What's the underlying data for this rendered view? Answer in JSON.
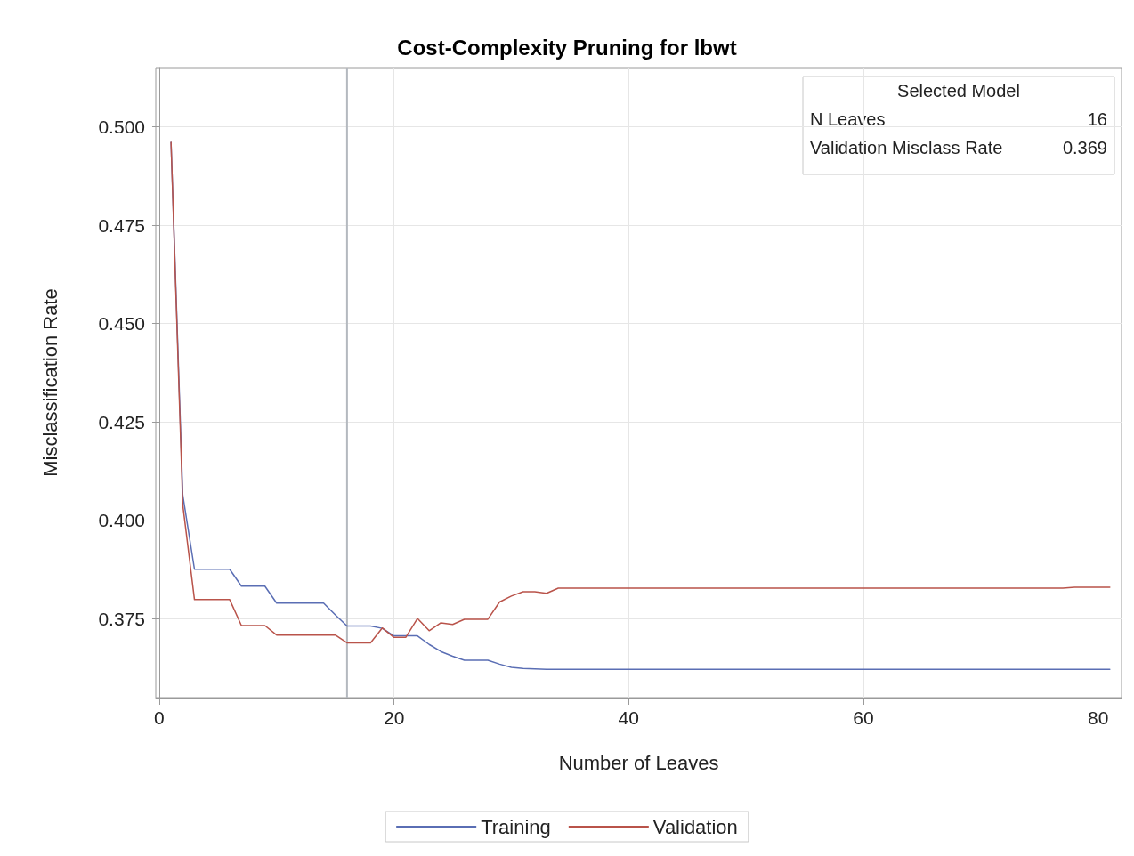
{
  "chart_data": {
    "type": "line",
    "title": "Cost-Complexity Pruning for lbwt",
    "xlabel": "Number of Leaves",
    "ylabel": "Misclassification Rate",
    "x": [
      1,
      2,
      3,
      4,
      5,
      6,
      7,
      8,
      9,
      10,
      11,
      12,
      13,
      14,
      15,
      16,
      17,
      18,
      19,
      20,
      21,
      22,
      23,
      24,
      25,
      26,
      27,
      28,
      29,
      30,
      31,
      32,
      33,
      34,
      35,
      36,
      37,
      38,
      39,
      40,
      41,
      42,
      43,
      44,
      45,
      46,
      47,
      48,
      49,
      50,
      51,
      52,
      53,
      54,
      55,
      56,
      57,
      58,
      59,
      60,
      61,
      62,
      63,
      64,
      65,
      66,
      67,
      68,
      69,
      70,
      71,
      72,
      73,
      74,
      75,
      76,
      77,
      78,
      79,
      80,
      81
    ],
    "series": [
      {
        "name": "Training",
        "color": "#5a6eb4",
        "values": [
          0.496,
          0.4065,
          0.3876,
          0.3876,
          0.3876,
          0.3876,
          0.3833,
          0.3833,
          0.3833,
          0.379,
          0.379,
          0.379,
          0.379,
          0.379,
          0.376,
          0.3732,
          0.3732,
          0.3732,
          0.3726,
          0.3707,
          0.3707,
          0.3707,
          0.3685,
          0.3667,
          0.3655,
          0.3645,
          0.3645,
          0.3645,
          0.3635,
          0.3627,
          0.3624,
          0.3623,
          0.3622,
          0.3622,
          0.3622,
          0.3622,
          0.3622,
          0.3622,
          0.3622,
          0.3622,
          0.3622,
          0.3622,
          0.3622,
          0.3622,
          0.3622,
          0.3622,
          0.3622,
          0.3622,
          0.3622,
          0.3622,
          0.3622,
          0.3622,
          0.3622,
          0.3622,
          0.3622,
          0.3622,
          0.3622,
          0.3622,
          0.3622,
          0.3622,
          0.3622,
          0.3622,
          0.3622,
          0.3622,
          0.3622,
          0.3622,
          0.3622,
          0.3622,
          0.3622,
          0.3622,
          0.3622,
          0.3622,
          0.3622,
          0.3622,
          0.3622,
          0.3622,
          0.3622,
          0.3622,
          0.3622,
          0.3622,
          0.3622
        ]
      },
      {
        "name": "Validation",
        "color": "#b9534a",
        "values": [
          0.496,
          0.404,
          0.3799,
          0.3799,
          0.3799,
          0.3799,
          0.3733,
          0.3733,
          0.3733,
          0.3709,
          0.3709,
          0.3709,
          0.3709,
          0.3709,
          0.3709,
          0.3689,
          0.3689,
          0.3689,
          0.3727,
          0.3703,
          0.3703,
          0.3751,
          0.372,
          0.374,
          0.3736,
          0.3749,
          0.3749,
          0.3749,
          0.3793,
          0.3808,
          0.3819,
          0.3819,
          0.3815,
          0.3828,
          0.3828,
          0.3828,
          0.3828,
          0.3828,
          0.3828,
          0.3828,
          0.3828,
          0.3828,
          0.3828,
          0.3828,
          0.3828,
          0.3828,
          0.3828,
          0.3828,
          0.3828,
          0.3828,
          0.3828,
          0.3828,
          0.3828,
          0.3828,
          0.3828,
          0.3828,
          0.3828,
          0.3828,
          0.3828,
          0.3828,
          0.3828,
          0.3828,
          0.3828,
          0.3828,
          0.3828,
          0.3828,
          0.3828,
          0.3828,
          0.3828,
          0.3828,
          0.3828,
          0.3828,
          0.3828,
          0.3828,
          0.3828,
          0.3828,
          0.3828,
          0.383,
          0.383,
          0.383,
          0.383
        ]
      }
    ],
    "xlim": [
      -0.3,
      82
    ],
    "xticks": [
      0,
      20,
      40,
      60,
      80
    ],
    "ylim": [
      0.355,
      0.515
    ],
    "yticks": [
      {
        "value": 0.375,
        "label": "0.375"
      },
      {
        "value": 0.4,
        "label": "0.400"
      },
      {
        "value": 0.425,
        "label": "0.425"
      },
      {
        "value": 0.45,
        "label": "0.450"
      },
      {
        "value": 0.475,
        "label": "0.475"
      },
      {
        "value": 0.5,
        "label": "0.500"
      }
    ],
    "ref_lines": [
      {
        "axis": "x",
        "value": 16,
        "color": "#b4b9bf"
      }
    ],
    "annotations": [
      "Selected Model",
      "N Leaves",
      "16",
      "Validation Misclass Rate",
      "0.369"
    ],
    "grid": true,
    "legend": "bottom",
    "marker": "none",
    "line_style": "solid"
  }
}
